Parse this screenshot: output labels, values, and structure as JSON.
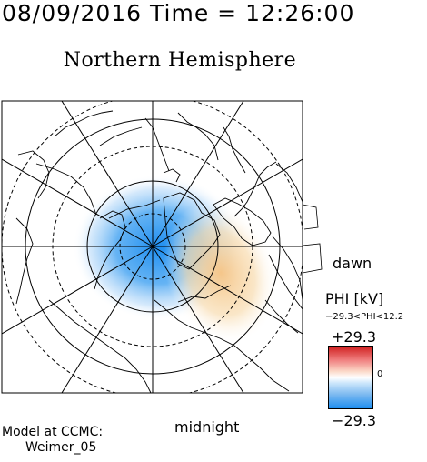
{
  "header": {
    "date": "08/09/2016",
    "time_label": "Time =",
    "time": "12:26:00"
  },
  "title": "Northern Hemisphere",
  "orientation": {
    "dawn": "dawn",
    "midnight": "midnight"
  },
  "credits": {
    "line1": "Model at CCMC:",
    "line2": "Weimer_05"
  },
  "colorbar": {
    "variable": "PHI [kV]",
    "range_text": "−29.3<PHI<12.2",
    "max_label": "+29.3",
    "min_label": "−29.3",
    "zero_label": "0",
    "colors": [
      "#d02020",
      "#f08080",
      "#fbd8c8",
      "#ffffff",
      "#c8e4fb",
      "#7ab8f0",
      "#1e8ef0"
    ]
  },
  "map": {
    "projection": "polar",
    "latitude_circles_solid_deg": [
      80,
      60
    ],
    "latitude_circles_dashed_deg": [
      70,
      50
    ],
    "meridian_lines": 12,
    "potential_cells": [
      {
        "sign": "negative",
        "color": "#1e8ef0"
      },
      {
        "sign": "positive",
        "color": "#f2c080"
      }
    ]
  }
}
